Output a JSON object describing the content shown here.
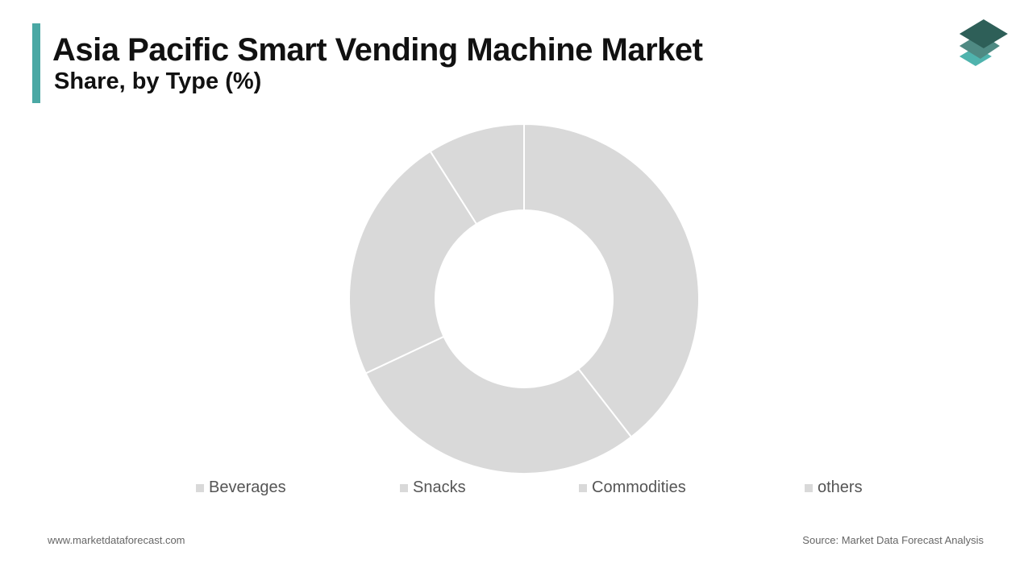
{
  "header": {
    "title": "Asia Pacific Smart Vending Machine Market",
    "subtitle": "Share, by Type (%)"
  },
  "chart_data": {
    "type": "pie",
    "donut": true,
    "categories": [
      "Beverages",
      "Snacks",
      "Commodities",
      "others"
    ],
    "values": [
      39.5,
      28.5,
      23,
      9
    ],
    "colors": [
      "#d9d9d9",
      "#d9d9d9",
      "#d9d9d9",
      "#d9d9d9"
    ],
    "separator_color": "#ffffff",
    "legend": "bottom"
  },
  "footer": {
    "website": "www.marketdataforecast.com",
    "source": "Source: Market Data Forecast Analysis"
  },
  "colors": {
    "accent": "#4aa8a4",
    "logo_top": "#2e5f58",
    "logo_mid": "#4f8a83",
    "logo_bottom": "#4fb3ad"
  }
}
